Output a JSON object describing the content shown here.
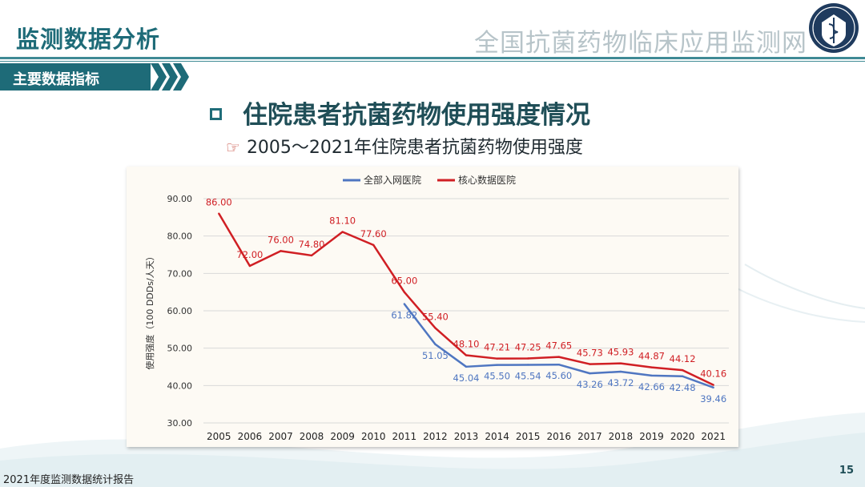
{
  "header": {
    "title": "监测数据分析",
    "subtitle": "全国抗菌药物临床应用监测网"
  },
  "section_tag": "主要数据指标",
  "main_heading": "住院患者抗菌药物使用强度情况",
  "sub_heading": "2005～2021年住院患者抗菌药物使用强度",
  "footer": {
    "report_name": "2021年度监测数据统计报告",
    "page_number": "15"
  },
  "colors": {
    "brand_teal": "#1e6b78",
    "series_all": "#4f76c1",
    "series_core": "#d01f24"
  },
  "chart_data": {
    "type": "line",
    "title": "",
    "xlabel": "",
    "ylabel": "使用强度（100 DDDs/人天）",
    "ylim": [
      30,
      90
    ],
    "yticks": [
      "30.00",
      "40.00",
      "50.00",
      "60.00",
      "70.00",
      "80.00",
      "90.00"
    ],
    "ytick_values": [
      30,
      40,
      50,
      60,
      70,
      80,
      90
    ],
    "grid": true,
    "legend_position": "top-center",
    "categories": [
      "2005",
      "2006",
      "2007",
      "2008",
      "2009",
      "2010",
      "2011",
      "2012",
      "2013",
      "2014",
      "2015",
      "2016",
      "2017",
      "2018",
      "2019",
      "2020",
      "2021"
    ],
    "series": [
      {
        "name": "全部入网医院",
        "color": "#4f76c1",
        "values": [
          null,
          null,
          null,
          null,
          null,
          null,
          61.82,
          51.05,
          45.04,
          45.5,
          45.54,
          45.6,
          43.26,
          43.72,
          42.66,
          42.48,
          39.46
        ],
        "labels": [
          null,
          null,
          null,
          null,
          null,
          null,
          "61.82",
          "51.05",
          "45.04",
          "45.50",
          "45.54",
          "45.60",
          "43.26",
          "43.72",
          "42.66",
          "42.48",
          "39.46"
        ]
      },
      {
        "name": "核心数据医院",
        "color": "#d01f24",
        "values": [
          86.0,
          72.0,
          76.0,
          74.8,
          81.1,
          77.6,
          65.0,
          55.4,
          48.1,
          47.21,
          47.25,
          47.65,
          45.73,
          45.93,
          44.87,
          44.12,
          40.16
        ],
        "labels": [
          "86.00",
          "72.00",
          "76.00",
          "74.80",
          "81.10",
          "77.60",
          "65.00",
          "55.40",
          "48.10",
          "47.21",
          "47.25",
          "47.65",
          "45.73",
          "45.93",
          "44.87",
          "44.12",
          "40.16"
        ]
      }
    ]
  }
}
